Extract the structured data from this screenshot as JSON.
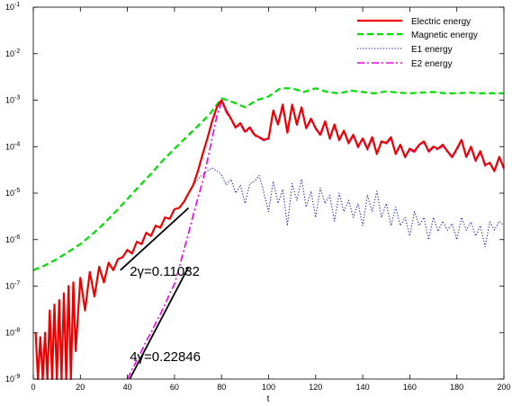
{
  "chart_data": {
    "type": "line",
    "xlabel": "t",
    "ylabel": "",
    "xlim": [
      0,
      200
    ],
    "ylim": [
      1e-09,
      0.1
    ],
    "yscale": "log",
    "grid": false,
    "legend_position": "top-right",
    "x_ticks": [
      "0",
      "20",
      "40",
      "60",
      "80",
      "100",
      "120",
      "140",
      "160",
      "180",
      "200"
    ],
    "y_ticks": [
      {
        "base": "10",
        "exp": "-9"
      },
      {
        "base": "10",
        "exp": "-8"
      },
      {
        "base": "10",
        "exp": "-7"
      },
      {
        "base": "10",
        "exp": "-6"
      },
      {
        "base": "10",
        "exp": "-5"
      },
      {
        "base": "10",
        "exp": "-4"
      },
      {
        "base": "10",
        "exp": "-3"
      },
      {
        "base": "10",
        "exp": "-2"
      },
      {
        "base": "10",
        "exp": "-1"
      }
    ],
    "colors": {
      "electric": "#ee0000",
      "magnetic": "#00dd00",
      "e1": "#0000bb",
      "e2": "#ee00ee",
      "fit": "#000000"
    },
    "series": [
      {
        "name": "Electric energy",
        "style": "solid",
        "x": [
          1,
          2,
          3,
          4,
          5,
          6,
          7,
          8,
          9,
          10,
          11,
          12,
          13,
          14,
          15,
          16,
          17,
          18,
          20,
          22,
          24,
          26,
          28,
          30,
          32,
          34,
          36,
          38,
          40,
          42,
          44,
          46,
          48,
          50,
          52,
          54,
          56,
          58,
          60,
          62,
          64,
          66,
          68,
          70,
          72,
          74,
          76,
          78,
          80,
          82,
          84,
          86,
          88,
          90,
          92,
          94,
          96,
          98,
          100,
          102,
          104,
          106,
          108,
          110,
          112,
          114,
          116,
          118,
          120,
          122,
          124,
          126,
          128,
          130,
          132,
          134,
          136,
          138,
          140,
          142,
          144,
          146,
          148,
          150,
          152,
          154,
          156,
          158,
          160,
          162,
          164,
          166,
          168,
          170,
          172,
          174,
          176,
          178,
          180,
          182,
          184,
          186,
          188,
          190,
          192,
          194,
          196,
          198,
          200
        ],
        "y": [
          1e-08,
          1e-09,
          8e-09,
          1e-09,
          1e-08,
          1e-09,
          3e-08,
          1e-09,
          4e-08,
          1e-09,
          5e-08,
          1e-09,
          7e-08,
          1e-09,
          1e-07,
          1e-09,
          1.2e-07,
          4e-09,
          1.5e-07,
          3e-08,
          2e-07,
          6e-08,
          2.6e-07,
          1.2e-07,
          3.2e-07,
          2.2e-07,
          3.8e-07,
          4.2e-07,
          6e-07,
          5e-07,
          9e-07,
          8e-07,
          1.4e-06,
          1.2e-06,
          2e-06,
          1.8e-06,
          3e-06,
          2.8e-06,
          4.5e-06,
          4.8e-06,
          6.5e-06,
          1e-05,
          1.5e-05,
          3e-05,
          7e-05,
          0.00015,
          0.00035,
          0.0007,
          0.001,
          0.0006,
          0.0004,
          0.00026,
          0.00032,
          0.00021,
          0.00026,
          0.00018,
          0.00016,
          0.00014,
          0.00015,
          0.0006,
          0.0003,
          0.0008,
          0.0002,
          0.0008,
          0.0003,
          0.0007,
          0.00025,
          0.0004,
          0.00025,
          0.00018,
          0.00035,
          0.00015,
          0.0003,
          0.00014,
          0.00022,
          0.00012,
          0.00018,
          0.0001,
          0.00015,
          9e-05,
          0.00016,
          7e-05,
          0.00013,
          0.00012,
          0.00016,
          7e-05,
          0.00011,
          6e-05,
          9e-05,
          8e-05,
          0.00011,
          0.00013,
          8e-05,
          0.0001,
          9e-05,
          0.00011,
          8e-05,
          6e-05,
          9e-05,
          0.00014,
          6e-05,
          0.0001,
          5e-05,
          8e-05,
          4e-05,
          4.5e-05,
          3e-05,
          6e-05,
          3.5e-05
        ]
      },
      {
        "name": "Magnetic energy",
        "style": "dashed",
        "x": [
          0,
          5,
          10,
          15,
          20,
          25,
          30,
          35,
          40,
          45,
          50,
          55,
          60,
          65,
          70,
          75,
          80,
          85,
          90,
          95,
          100,
          105,
          110,
          115,
          120,
          125,
          130,
          135,
          140,
          145,
          150,
          155,
          160,
          165,
          170,
          175,
          180,
          185,
          190,
          195,
          200
        ],
        "y": [
          2.2e-07,
          2.8e-07,
          3.8e-07,
          5.5e-07,
          8e-07,
          1.3e-06,
          2.2e-06,
          4e-06,
          7.5e-06,
          1.4e-05,
          2.6e-05,
          5e-05,
          9e-05,
          0.00016,
          0.00028,
          0.0005,
          0.0011,
          0.0009,
          0.0007,
          0.001,
          0.0012,
          0.0018,
          0.0018,
          0.0015,
          0.0018,
          0.0015,
          0.0014,
          0.0016,
          0.0015,
          0.0014,
          0.00155,
          0.00145,
          0.0014,
          0.00145,
          0.0015,
          0.0014,
          0.0014,
          0.00145,
          0.0014,
          0.0014,
          0.0014
        ]
      },
      {
        "name": "E1 energy",
        "style": "dotted",
        "x": [
          68,
          70,
          72,
          74,
          76,
          78,
          80,
          82,
          84,
          86,
          88,
          90,
          92,
          94,
          96,
          98,
          100,
          102,
          104,
          106,
          108,
          110,
          112,
          114,
          116,
          118,
          120,
          122,
          124,
          126,
          128,
          130,
          132,
          134,
          136,
          138,
          140,
          142,
          144,
          146,
          148,
          150,
          152,
          154,
          156,
          158,
          160,
          162,
          164,
          166,
          168,
          170,
          172,
          174,
          176,
          178,
          180,
          182,
          184,
          186,
          188,
          190,
          192,
          194,
          196,
          198,
          200
        ],
        "y": [
          1.5e-05,
          2e-05,
          2.5e-05,
          3e-05,
          3.5e-05,
          3e-05,
          2.5e-05,
          1.5e-05,
          2e-05,
          1e-05,
          1.5e-05,
          6e-06,
          1.6e-05,
          1.8e-05,
          2.4e-05,
          1e-05,
          4e-06,
          1.8e-05,
          6e-06,
          1.2e-05,
          2e-06,
          1.6e-05,
          7e-06,
          2e-05,
          5e-06,
          1.1e-05,
          3e-06,
          1.3e-05,
          6e-06,
          9e-06,
          2.5e-06,
          1e-05,
          4e-06,
          7e-06,
          3e-06,
          6e-06,
          2e-06,
          9e-06,
          4e-06,
          1.1e-05,
          3e-06,
          6e-06,
          2e-06,
          5e-06,
          2e-06,
          3e-06,
          1.2e-06,
          4e-06,
          2e-06,
          3e-06,
          1e-06,
          3e-06,
          1.5e-06,
          2.5e-06,
          1.6e-06,
          2.2e-06,
          1e-06,
          3e-06,
          1.6e-06,
          2.4e-06,
          1.2e-06,
          2e-06,
          7e-07,
          2.4e-06,
          1.6e-06,
          2.5e-06,
          2e-06
        ]
      },
      {
        "name": "E2 energy",
        "style": "dashdot",
        "x": [
          40,
          42,
          44,
          46,
          48,
          50,
          52,
          54,
          56,
          58,
          60,
          62,
          64,
          66,
          68,
          70,
          72,
          74,
          76,
          78,
          80,
          82,
          84,
          86,
          88,
          90,
          92,
          94,
          96,
          98,
          100,
          102,
          104,
          106,
          108,
          110,
          112,
          114,
          116,
          118,
          120,
          122,
          124,
          126,
          128,
          130,
          132,
          134,
          136,
          138,
          140,
          142,
          144,
          146,
          148,
          150,
          152,
          154,
          156,
          158,
          160,
          162,
          164,
          166,
          168,
          170,
          172,
          174,
          176,
          178,
          180,
          182,
          184,
          186,
          188,
          190,
          192,
          194,
          196,
          198,
          200
        ],
        "y": [
          1e-09,
          1.6e-09,
          2.5e-09,
          4e-09,
          6.5e-09,
          1e-08,
          1.6e-08,
          2.5e-08,
          4e-08,
          7e-08,
          1.1e-07,
          2.5e-07,
          6e-07,
          1.4e-06,
          3.4e-06,
          8e-06,
          1.8e-05,
          5e-05,
          0.00015,
          0.00045,
          0.0009,
          0.00055,
          0.00038,
          0.00025,
          0.0003,
          0.0002,
          0.00025,
          0.00017,
          0.000155,
          0.000135,
          0.000145,
          0.00055,
          0.00029,
          0.00075,
          0.00019,
          0.00075,
          0.00029,
          0.00065,
          0.00024,
          0.00038,
          0.00024,
          0.00017,
          0.00033,
          0.000145,
          0.00028,
          0.000135,
          0.00021,
          0.000115,
          0.00017,
          9.5e-05,
          0.000145,
          8.5e-05,
          0.00015,
          6.8e-05,
          0.000125,
          0.000115,
          0.00015,
          6.8e-05,
          0.000105,
          5.8e-05,
          8.5e-05,
          7.6e-05,
          0.000105,
          0.000125,
          7.6e-05,
          9.5e-05,
          8.5e-05,
          0.000105,
          7.6e-05,
          5.8e-05,
          8.5e-05,
          0.000135,
          5.8e-05,
          9.5e-05,
          4.8e-05,
          7.6e-05,
          3.8e-05,
          4.3e-05,
          2.9e-05,
          5.7e-05,
          3.3e-05
        ]
      }
    ],
    "fit_lines": [
      {
        "x": [
          37,
          66
        ],
        "y": [
          2.2e-07,
          4.8e-06
        ]
      },
      {
        "x": [
          41,
          66
        ],
        "y": [
          1e-09,
          2.6e-07
        ]
      }
    ],
    "annotations": [
      {
        "text": "2γ=0.11032",
        "x": 41,
        "y": 2.2e-07
      },
      {
        "text": "4γ=0.22846",
        "x": 41,
        "y": 3.2e-09
      }
    ]
  }
}
